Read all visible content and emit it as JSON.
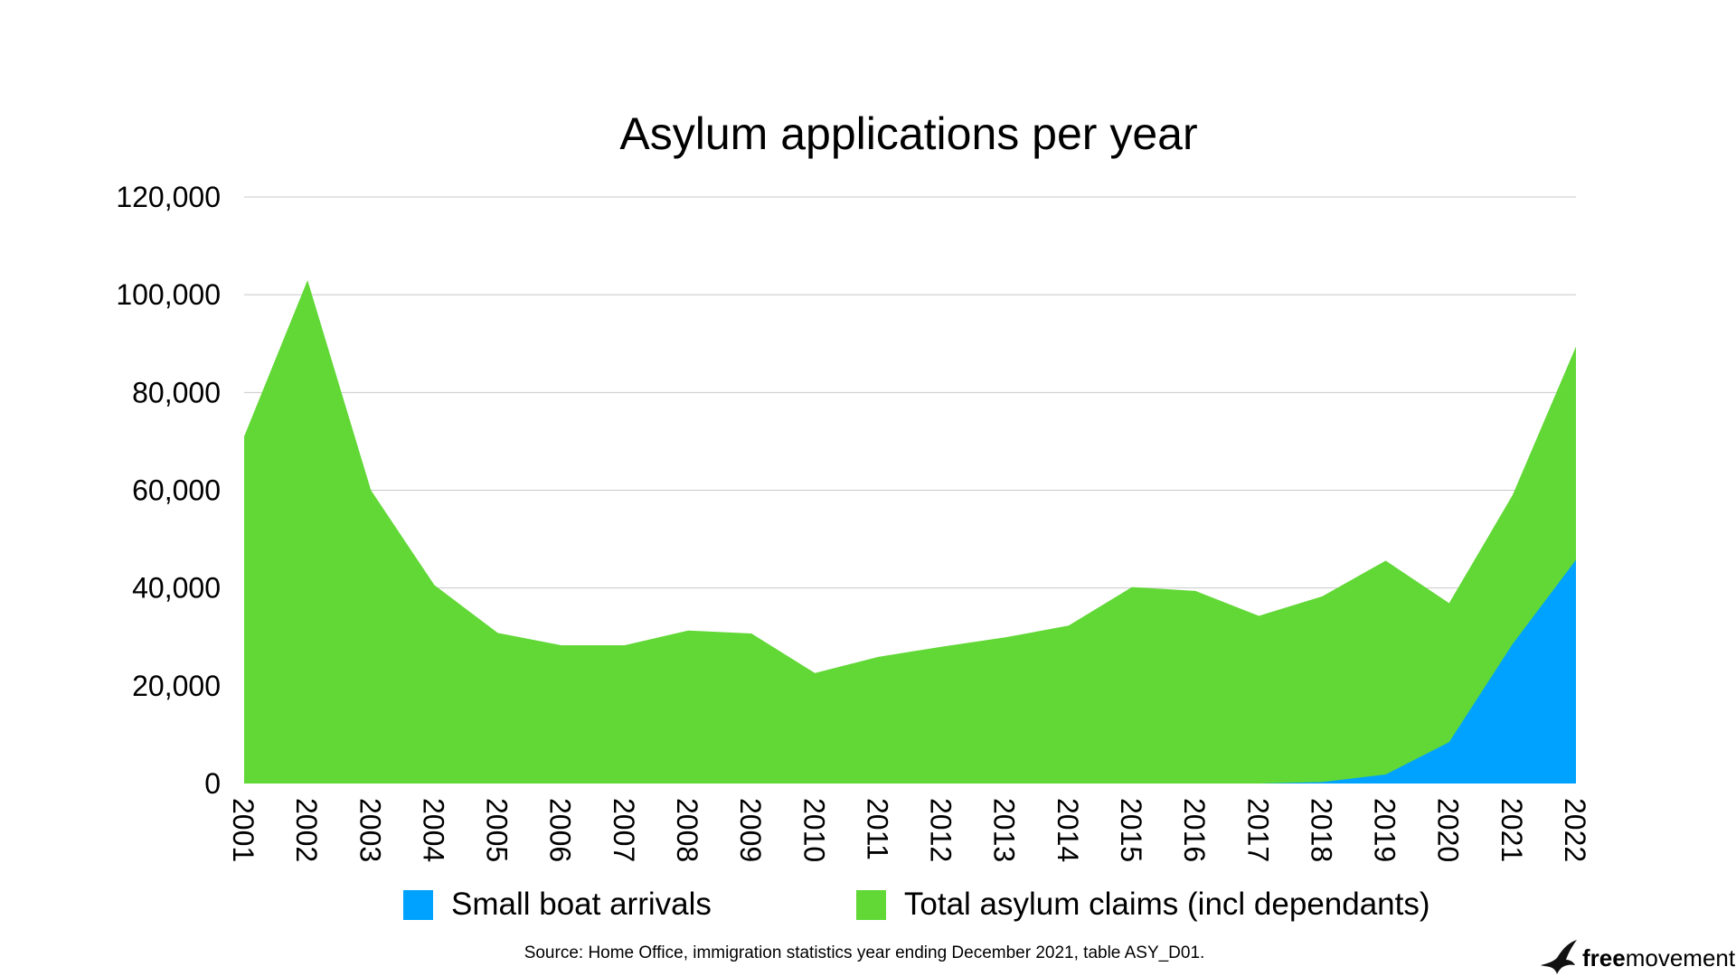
{
  "chart_data": {
    "type": "area",
    "title": "Asylum applications per year",
    "categories": [
      "2001",
      "2002",
      "2003",
      "2004",
      "2005",
      "2006",
      "2007",
      "2008",
      "2009",
      "2010",
      "2011",
      "2012",
      "2013",
      "2014",
      "2015",
      "2016",
      "2017",
      "2018",
      "2019",
      "2020",
      "2021",
      "2022"
    ],
    "series": [
      {
        "name": "Small boat arrivals",
        "color": "#00a2ff",
        "values": [
          0,
          0,
          0,
          0,
          0,
          0,
          0,
          0,
          0,
          0,
          0,
          0,
          0,
          0,
          0,
          0,
          0,
          300,
          1843,
          8466,
          28526,
          45755
        ]
      },
      {
        "name": "Total asylum claims (incl dependants)",
        "color": "#61d836",
        "values": [
          71000,
          103000,
          60000,
          40600,
          30800,
          28300,
          28300,
          31300,
          30700,
          22600,
          25900,
          28000,
          29900,
          32300,
          40200,
          39400,
          34300,
          38300,
          45600,
          36900,
          59000,
          89400
        ]
      }
    ],
    "y_ticks": [
      "0",
      "20,000",
      "40,000",
      "60,000",
      "80,000",
      "100,000",
      "120,000"
    ],
    "ylim": [
      0,
      120000
    ],
    "stacked": false,
    "grid": true,
    "legend_position": "bottom",
    "source": "Source: Home Office, immigration statistics year ending December 2021, table ASY_D01."
  },
  "brand": {
    "logo_icon": "bird-icon",
    "name_bold": "free",
    "name_regular": "movement"
  }
}
